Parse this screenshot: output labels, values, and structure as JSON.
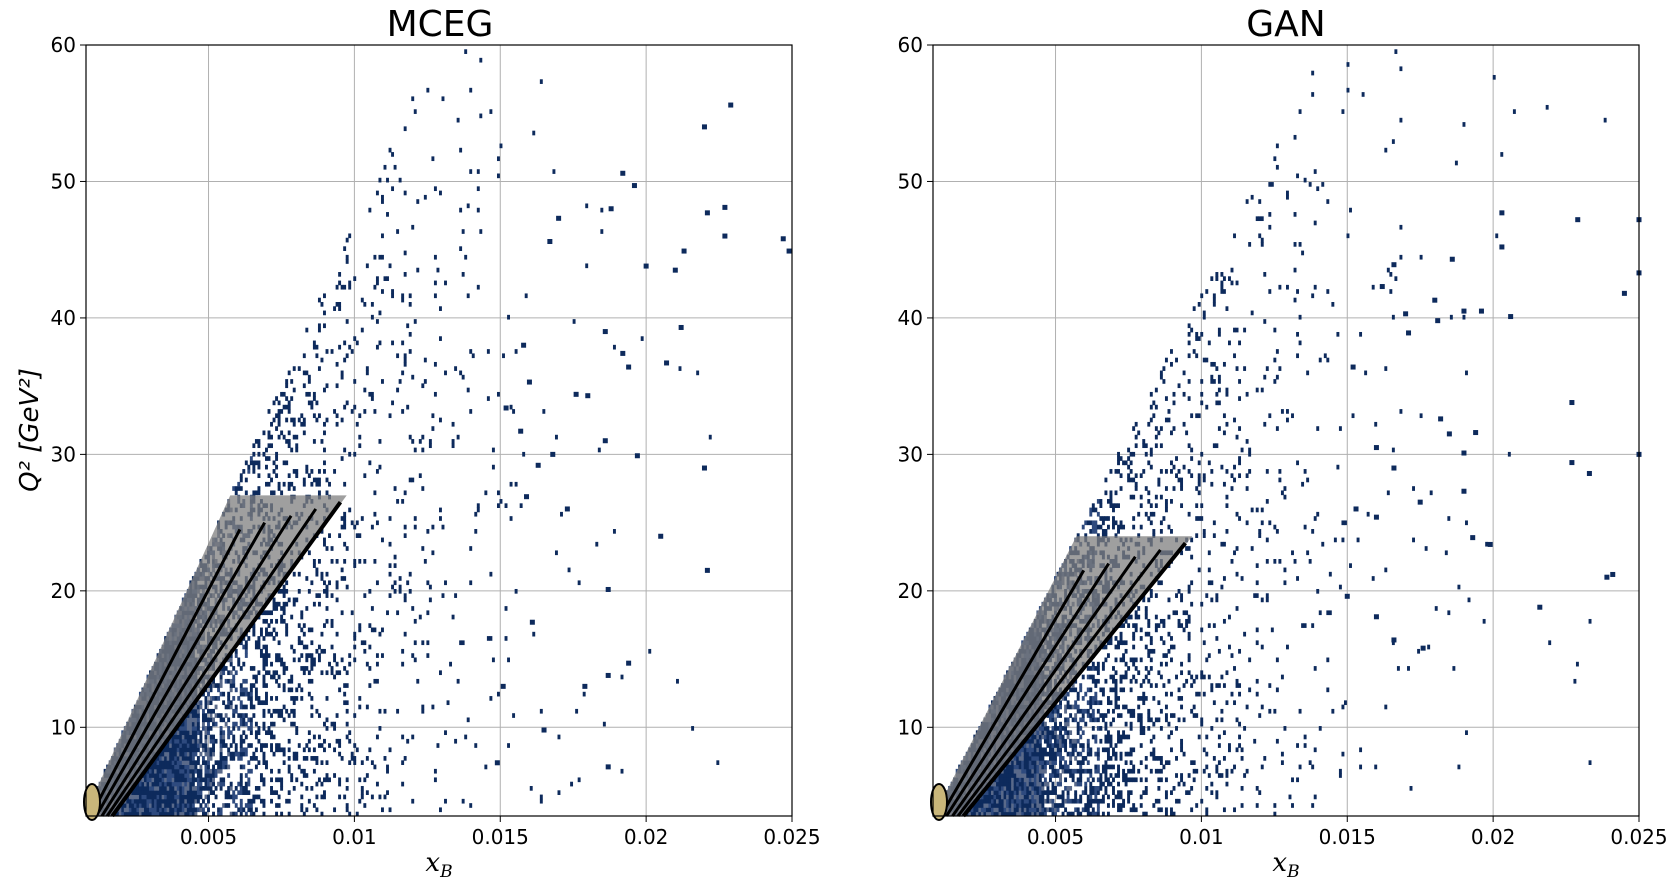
{
  "figure": {
    "colors": {
      "frame": "#000000",
      "grid": "#b0b0b0",
      "cell_dark": "#0d2a5c",
      "cell_mid": "#2e4a7e",
      "cell_light": "#5a6a8a",
      "fill_gray": "#7f7f7f",
      "fill_core": "#c9b67a",
      "contour": "#000000"
    }
  },
  "chart_data": [
    {
      "type": "heatmap",
      "title": "MCEG",
      "xlabel_main": "x",
      "xlabel_sub": "B",
      "ylabel": "Q² [GeV²]",
      "xlim": [
        0.0008,
        0.025
      ],
      "ylim": [
        3.5,
        60
      ],
      "xticks": [
        0.005,
        0.01,
        0.015,
        0.02,
        0.025
      ],
      "xtick_labels": [
        "0.005",
        "0.01",
        "0.015",
        "0.02",
        "0.025"
      ],
      "yticks": [
        10,
        20,
        30,
        40,
        50,
        60
      ],
      "ytick_labels": [
        "10",
        "20",
        "30",
        "40",
        "50",
        "60"
      ],
      "grid": true,
      "kinematic_edge": {
        "q2_per_x": 4700
      },
      "density": {
        "n_bins_x": 280,
        "n_bins_y": 180,
        "decay_x": 0.0026,
        "seed": 11
      },
      "sparse_points": [
        [
          0.0229,
          55.6
        ],
        [
          0.022,
          54.0
        ],
        [
          0.0192,
          50.6
        ],
        [
          0.0196,
          49.7
        ],
        [
          0.0188,
          48.0
        ],
        [
          0.0221,
          47.7
        ],
        [
          0.0227,
          48.1
        ],
        [
          0.0227,
          46.0
        ],
        [
          0.0213,
          44.9
        ],
        [
          0.021,
          43.5
        ],
        [
          0.0247,
          45.8
        ],
        [
          0.0249,
          44.9
        ],
        [
          0.02,
          43.8
        ],
        [
          0.0212,
          39.3
        ],
        [
          0.0207,
          36.7
        ],
        [
          0.0186,
          39.0
        ],
        [
          0.0192,
          37.4
        ],
        [
          0.0194,
          36.4
        ],
        [
          0.0197,
          29.9
        ],
        [
          0.0186,
          31.0
        ],
        [
          0.018,
          34.3
        ],
        [
          0.0205,
          24.0
        ],
        [
          0.022,
          29.0
        ],
        [
          0.0221,
          21.5
        ],
        [
          0.0187,
          20.1
        ],
        [
          0.0179,
          13.0
        ],
        [
          0.0187,
          13.8
        ],
        [
          0.0194,
          14.7
        ],
        [
          0.0187,
          7.1
        ],
        [
          0.0161,
          17.7
        ],
        [
          0.0159,
          26.9
        ],
        [
          0.0151,
          13.0
        ],
        [
          0.0149,
          7.4
        ],
        [
          0.0165,
          9.8
        ],
        [
          0.017,
          47.3
        ],
        [
          0.0167,
          45.6
        ],
        [
          0.0176,
          34.4
        ],
        [
          0.0168,
          30.0
        ],
        [
          0.0163,
          29.2
        ],
        [
          0.0173,
          26.0
        ],
        [
          0.0157,
          31.7
        ],
        [
          0.0152,
          33.4
        ],
        [
          0.016,
          35.3
        ],
        [
          0.0158,
          38.0
        ]
      ]
    },
    {
      "type": "heatmap",
      "title": "GAN",
      "xlabel_main": "x",
      "xlabel_sub": "B",
      "ylabel": "",
      "xlim": [
        0.0008,
        0.025
      ],
      "ylim": [
        3.5,
        60
      ],
      "xticks": [
        0.005,
        0.01,
        0.015,
        0.02,
        0.025
      ],
      "xtick_labels": [
        "0.005",
        "0.01",
        "0.015",
        "0.02",
        "0.025"
      ],
      "yticks": [
        10,
        20,
        30,
        40,
        50,
        60
      ],
      "ytick_labels": [
        "10",
        "20",
        "30",
        "40",
        "50",
        "60"
      ],
      "grid": true,
      "kinematic_edge": {
        "q2_per_x": 4200
      },
      "density": {
        "n_bins_x": 280,
        "n_bins_y": 180,
        "decay_x": 0.0028,
        "seed": 29
      },
      "sparse_points": [
        [
          0.0203,
          47.7
        ],
        [
          0.0229,
          47.2
        ],
        [
          0.025,
          47.2
        ],
        [
          0.0203,
          45.2
        ],
        [
          0.0186,
          44.3
        ],
        [
          0.025,
          43.3
        ],
        [
          0.0245,
          41.8
        ],
        [
          0.0206,
          40.1
        ],
        [
          0.0196,
          40.5
        ],
        [
          0.019,
          40.5
        ],
        [
          0.0181,
          39.8
        ],
        [
          0.018,
          41.3
        ],
        [
          0.017,
          40.3
        ],
        [
          0.0166,
          43.9
        ],
        [
          0.0162,
          42.3
        ],
        [
          0.0171,
          38.9
        ],
        [
          0.0185,
          31.5
        ],
        [
          0.0194,
          31.6
        ],
        [
          0.019,
          30.1
        ],
        [
          0.0182,
          32.6
        ],
        [
          0.0227,
          33.8
        ],
        [
          0.0227,
          29.4
        ],
        [
          0.0233,
          28.6
        ],
        [
          0.025,
          30.0
        ],
        [
          0.0193,
          23.9
        ],
        [
          0.0199,
          23.4
        ],
        [
          0.019,
          27.3
        ],
        [
          0.0175,
          26.5
        ],
        [
          0.0241,
          21.2
        ],
        [
          0.0239,
          21.0
        ],
        [
          0.0216,
          18.8
        ],
        [
          0.0176,
          15.8
        ],
        [
          0.0166,
          16.4
        ],
        [
          0.016,
          18.1
        ],
        [
          0.016,
          25.4
        ],
        [
          0.0153,
          26.0
        ],
        [
          0.015,
          19.6
        ],
        [
          0.0166,
          29.0
        ],
        [
          0.016,
          30.5
        ],
        [
          0.0152,
          36.4
        ]
      ]
    }
  ]
}
